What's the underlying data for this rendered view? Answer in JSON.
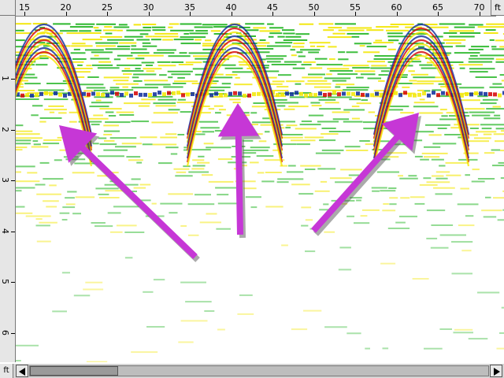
{
  "rulers": {
    "distance_unit": "ft",
    "depth_unit": "ft",
    "distance_ticks": [
      "15",
      "20",
      "25",
      "30",
      "35",
      "40",
      "45",
      "50",
      "55",
      "60",
      "65",
      "70"
    ],
    "depth_ticks": [
      "1",
      "2",
      "3",
      "4",
      "5",
      "6"
    ]
  },
  "scrollbar": {
    "left_icon": "left-arrow-icon",
    "right_icon": "right-arrow-icon",
    "position_fraction": 0.0
  },
  "annotations": {
    "arrow_color": "#c637d6",
    "arrow_count": 3
  },
  "colors": {
    "strong_positive": "#0a2a9a",
    "strong_negative": "#d40000",
    "moderate": "#1fb41f",
    "weak": "#f2e600"
  }
}
